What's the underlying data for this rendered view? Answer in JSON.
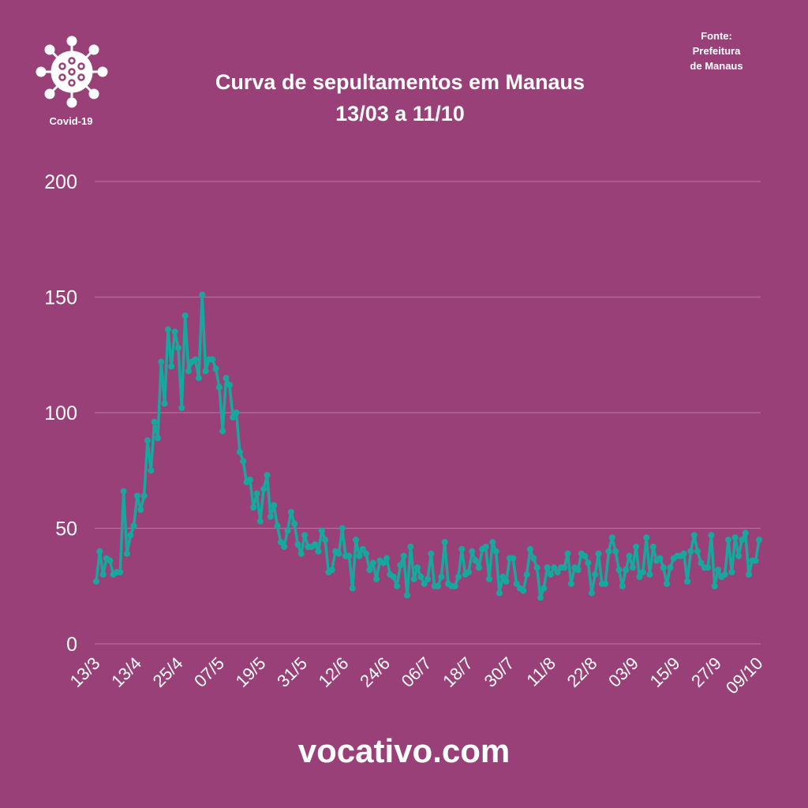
{
  "header": {
    "title_line1": "Curva de sepultamentos em Manaus",
    "title_line2": "13/03 a 11/10",
    "source_line1": "Fonte:",
    "source_line2": "Prefeitura",
    "source_line3": "de Manaus",
    "logo_label": "Covid-19"
  },
  "footer": {
    "site": "vocativo.com"
  },
  "colors": {
    "background": "#9a4079",
    "line": "#17a89d",
    "grid": "#b66c9b"
  },
  "chart_data": {
    "type": "line",
    "title": "Curva de sepultamentos em Manaus 13/03 a 11/10",
    "xlabel": "",
    "ylabel": "",
    "ylim": [
      0,
      200
    ],
    "yticks": [
      0,
      50,
      100,
      150,
      200
    ],
    "ytick_labels": [
      "0",
      "50",
      "100",
      "150",
      "200"
    ],
    "xtick_labels": [
      "13/3",
      "13/4",
      "25/4",
      "07/5",
      "19/5",
      "31/5",
      "12/6",
      "24/6",
      "06/7",
      "18/7",
      "30/7",
      "11/8",
      "22/8",
      "03/9",
      "15/9",
      "27/9",
      "09/10"
    ],
    "grid": true,
    "series": [
      {
        "name": "Sepultamentos",
        "values": [
          27,
          40,
          30,
          37,
          36,
          30,
          31,
          31,
          66,
          39,
          47,
          51,
          64,
          58,
          64,
          88,
          75,
          96,
          89,
          122,
          104,
          136,
          120,
          135,
          128,
          102,
          142,
          118,
          122,
          123,
          115,
          151,
          118,
          123,
          123,
          119,
          111,
          92,
          115,
          112,
          98,
          100,
          83,
          79,
          70,
          71,
          59,
          65,
          53,
          67,
          73,
          55,
          60,
          51,
          44,
          42,
          49,
          57,
          52,
          43,
          39,
          47,
          42,
          42,
          43,
          40,
          49,
          45,
          31,
          32,
          40,
          39,
          50,
          38,
          38,
          24,
          45,
          38,
          41,
          39,
          32,
          35,
          28,
          36,
          35,
          37,
          30,
          29,
          25,
          34,
          38,
          21,
          42,
          28,
          33,
          29,
          26,
          28,
          39,
          25,
          25,
          29,
          44,
          26,
          25,
          25,
          29,
          41,
          30,
          31,
          40,
          36,
          33,
          41,
          42,
          28,
          44,
          40,
          22,
          29,
          27,
          37,
          37,
          26,
          24,
          23,
          30,
          41,
          37,
          33,
          20,
          24,
          33,
          30,
          33,
          31,
          33,
          33,
          39,
          26,
          33,
          32,
          39,
          38,
          35,
          22,
          30,
          39,
          26,
          26,
          40,
          46,
          40,
          32,
          25,
          32,
          38,
          33,
          42,
          29,
          31,
          46,
          30,
          42,
          36,
          37,
          33,
          26,
          33,
          37,
          38,
          38,
          39,
          27,
          40,
          47,
          40,
          35,
          33,
          33,
          47,
          25,
          32,
          29,
          30,
          45,
          31,
          46,
          38,
          45,
          48,
          30,
          36,
          36,
          45
        ]
      }
    ]
  }
}
